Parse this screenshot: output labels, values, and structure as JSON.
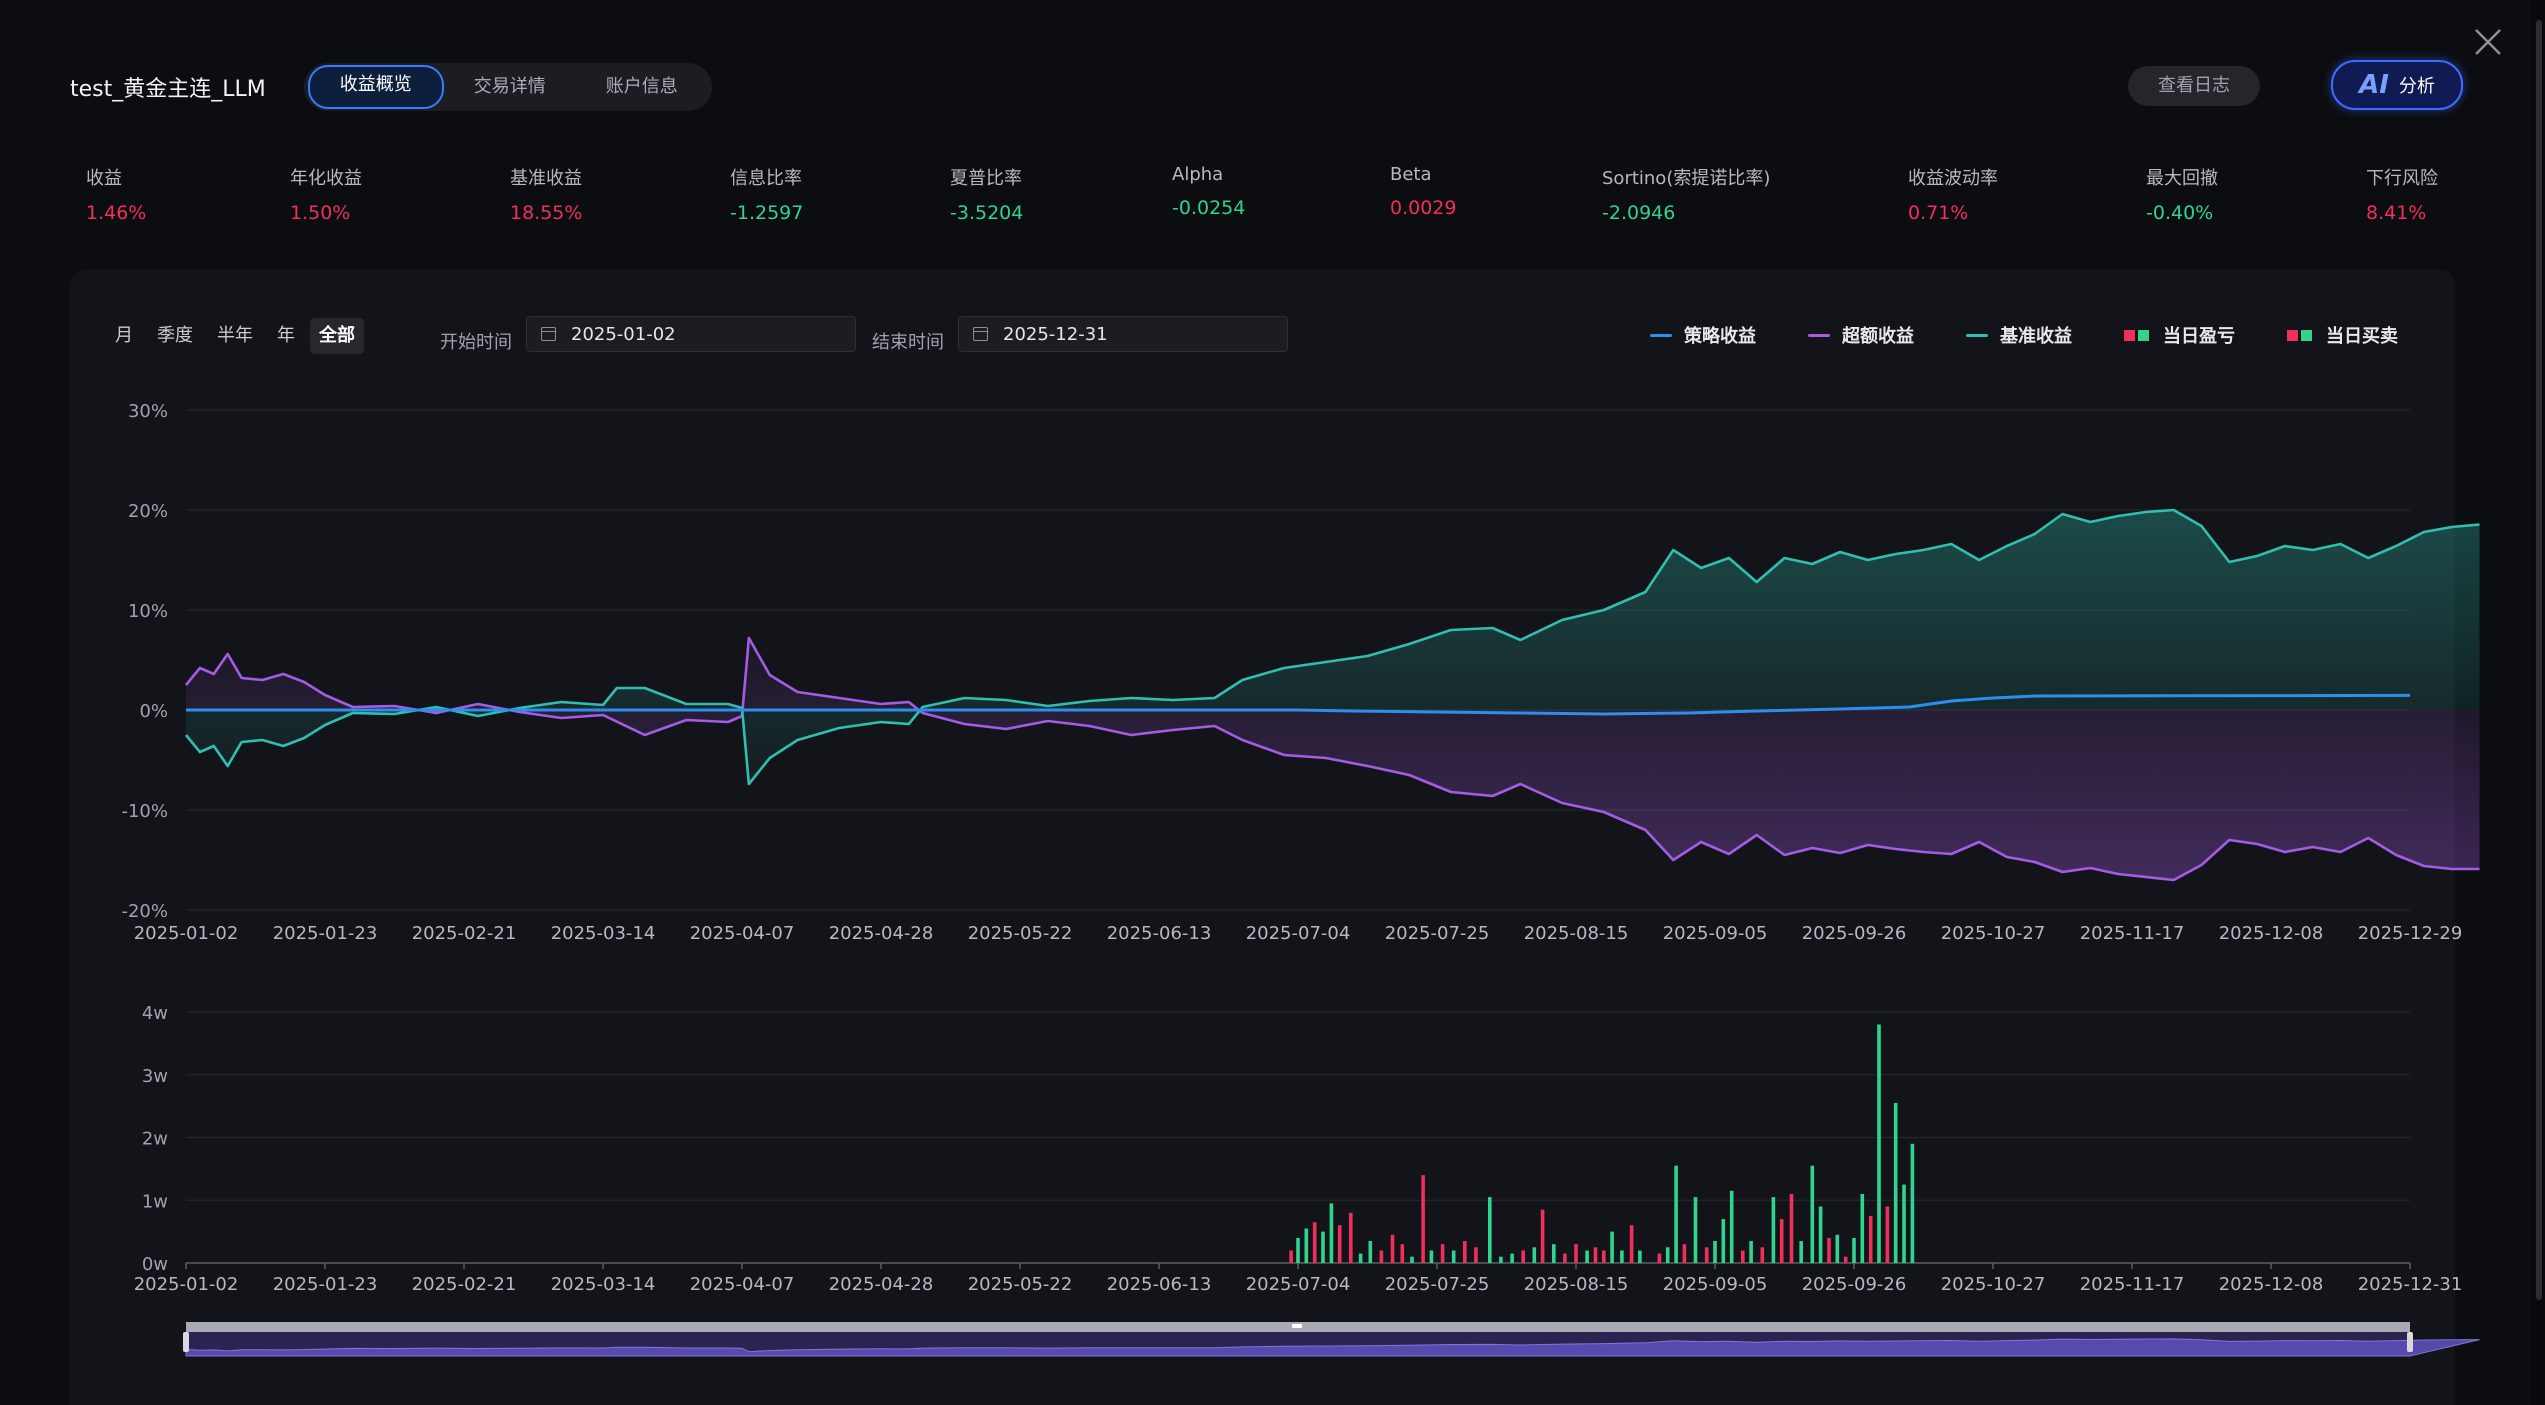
{
  "header": {
    "title": "test_黄金主连_LLM",
    "tabs": [
      {
        "label": "收益概览",
        "active": true
      },
      {
        "label": "交易详情",
        "active": false
      },
      {
        "label": "账户信息",
        "active": false
      }
    ],
    "log_button": "查看日志",
    "ai_icon": "AI",
    "ai_button": "分析"
  },
  "metrics": [
    {
      "label": "收益",
      "value": "1.46%",
      "tone": "red"
    },
    {
      "label": "年化收益",
      "value": "1.50%",
      "tone": "red"
    },
    {
      "label": "基准收益",
      "value": "18.55%",
      "tone": "red"
    },
    {
      "label": "信息比率",
      "value": "-1.2597",
      "tone": "green"
    },
    {
      "label": "夏普比率",
      "value": "-3.5204",
      "tone": "green"
    },
    {
      "label": "Alpha",
      "value": "-0.0254",
      "tone": "green"
    },
    {
      "label": "Beta",
      "value": "0.0029",
      "tone": "red"
    },
    {
      "label": "Sortino(索提诺比率)",
      "value": "-2.0946",
      "tone": "green"
    },
    {
      "label": "收益波动率",
      "value": "0.71%",
      "tone": "red"
    },
    {
      "label": "最大回撤",
      "value": "-0.40%",
      "tone": "green"
    },
    {
      "label": "下行风险",
      "value": "8.41%",
      "tone": "red"
    }
  ],
  "filters": {
    "periods": [
      {
        "label": "月",
        "active": false
      },
      {
        "label": "季度",
        "active": false
      },
      {
        "label": "半年",
        "active": false
      },
      {
        "label": "年",
        "active": false
      },
      {
        "label": "全部",
        "active": true
      }
    ],
    "start_label": "开始时间",
    "start_value": "2025-01-02",
    "end_label": "结束时间",
    "end_value": "2025-12-31"
  },
  "legend": {
    "strategy": "策略收益",
    "excess": "超额收益",
    "benchmark": "基准收益",
    "daily_pnl": "当日盈亏",
    "daily_trade": "当日买卖"
  },
  "colors": {
    "strategy": "#2b8ff0",
    "excess": "#a45ce6",
    "benchmark": "#2fbfb0",
    "up": "#f0305a",
    "down": "#2fd48d"
  },
  "chart_data": [
    {
      "type": "line",
      "ylim": [
        -20,
        30
      ],
      "y_ticks": [
        "30%",
        "20%",
        "10%",
        "0%",
        "-10%",
        "-20%"
      ],
      "x_ticks": [
        "2025-01-02",
        "2025-01-23",
        "2025-02-21",
        "2025-03-14",
        "2025-04-07",
        "2025-04-28",
        "2025-05-22",
        "2025-06-13",
        "2025-07-04",
        "2025-07-25",
        "2025-08-15",
        "2025-09-05",
        "2025-09-26",
        "2025-10-27",
        "2025-11-17",
        "2025-12-08",
        "2025-12-29"
      ],
      "series": [
        {
          "name": "策略收益",
          "key": "strategy",
          "fill": false,
          "points": [
            [
              0,
              0
            ],
            [
              8,
              0
            ],
            [
              8.4,
              -0.1
            ],
            [
              9,
              -0.2
            ],
            [
              9.6,
              -0.3
            ],
            [
              10.2,
              -0.4
            ],
            [
              10.8,
              -0.3
            ],
            [
              11.3,
              -0.1
            ],
            [
              11.9,
              0.1
            ],
            [
              12.4,
              0.3
            ],
            [
              12.7,
              0.9
            ],
            [
              13,
              1.2
            ],
            [
              13.3,
              1.4
            ],
            [
              16,
              1.46
            ]
          ]
        },
        {
          "name": "超额收益",
          "key": "excess",
          "fill": true,
          "points": [
            [
              0,
              2.5
            ],
            [
              0.1,
              4.2
            ],
            [
              0.2,
              3.6
            ],
            [
              0.3,
              5.6
            ],
            [
              0.4,
              3.2
            ],
            [
              0.55,
              3.0
            ],
            [
              0.7,
              3.6
            ],
            [
              0.85,
              2.8
            ],
            [
              1.0,
              1.5
            ],
            [
              1.2,
              0.3
            ],
            [
              1.5,
              0.4
            ],
            [
              1.8,
              -0.3
            ],
            [
              2.1,
              0.6
            ],
            [
              2.4,
              -0.2
            ],
            [
              2.7,
              -0.8
            ],
            [
              3.0,
              -0.5
            ],
            [
              3.3,
              -2.5
            ],
            [
              3.6,
              -1.0
            ],
            [
              3.9,
              -1.2
            ],
            [
              4.0,
              -0.6
            ],
            [
              4.05,
              7.2
            ],
            [
              4.2,
              3.5
            ],
            [
              4.4,
              1.8
            ],
            [
              4.7,
              1.2
            ],
            [
              5.0,
              0.6
            ],
            [
              5.2,
              0.8
            ],
            [
              5.3,
              -0.3
            ],
            [
              5.6,
              -1.4
            ],
            [
              5.9,
              -1.9
            ],
            [
              6.2,
              -1.1
            ],
            [
              6.5,
              -1.6
            ],
            [
              6.8,
              -2.5
            ],
            [
              7.1,
              -2.0
            ],
            [
              7.4,
              -1.6
            ],
            [
              7.6,
              -3.0
            ],
            [
              7.9,
              -4.5
            ],
            [
              8.2,
              -4.8
            ],
            [
              8.5,
              -5.6
            ],
            [
              8.8,
              -6.5
            ],
            [
              9.1,
              -8.2
            ],
            [
              9.4,
              -8.6
            ],
            [
              9.6,
              -7.4
            ],
            [
              9.9,
              -9.3
            ],
            [
              10.2,
              -10.2
            ],
            [
              10.5,
              -12.0
            ],
            [
              10.7,
              -15.0
            ],
            [
              10.9,
              -13.2
            ],
            [
              11.1,
              -14.4
            ],
            [
              11.3,
              -12.5
            ],
            [
              11.5,
              -14.5
            ],
            [
              11.7,
              -13.8
            ],
            [
              11.9,
              -14.3
            ],
            [
              12.1,
              -13.5
            ],
            [
              12.3,
              -13.9
            ],
            [
              12.5,
              -14.2
            ],
            [
              12.7,
              -14.4
            ],
            [
              12.9,
              -13.2
            ],
            [
              13.1,
              -14.7
            ],
            [
              13.3,
              -15.2
            ],
            [
              13.5,
              -16.2
            ],
            [
              13.7,
              -15.8
            ],
            [
              13.9,
              -16.4
            ],
            [
              14.1,
              -16.7
            ],
            [
              14.3,
              -17.0
            ],
            [
              14.5,
              -15.5
            ],
            [
              14.7,
              -13.0
            ],
            [
              14.9,
              -13.4
            ],
            [
              15.1,
              -14.2
            ],
            [
              15.3,
              -13.7
            ],
            [
              15.5,
              -14.2
            ],
            [
              15.7,
              -12.8
            ],
            [
              15.9,
              -14.5
            ],
            [
              16.1,
              -15.6
            ],
            [
              16.3,
              -15.9
            ],
            [
              16.5,
              -15.9
            ]
          ]
        },
        {
          "name": "基准收益",
          "key": "benchmark",
          "fill": true,
          "points": [
            [
              0,
              -2.5
            ],
            [
              0.1,
              -4.2
            ],
            [
              0.2,
              -3.6
            ],
            [
              0.3,
              -5.6
            ],
            [
              0.4,
              -3.2
            ],
            [
              0.55,
              -3.0
            ],
            [
              0.7,
              -3.6
            ],
            [
              0.85,
              -2.8
            ],
            [
              1.0,
              -1.5
            ],
            [
              1.2,
              -0.3
            ],
            [
              1.5,
              -0.4
            ],
            [
              1.8,
              0.3
            ],
            [
              2.1,
              -0.6
            ],
            [
              2.4,
              0.2
            ],
            [
              2.7,
              0.8
            ],
            [
              3.0,
              0.5
            ],
            [
              3.1,
              2.2
            ],
            [
              3.3,
              2.2
            ],
            [
              3.6,
              0.6
            ],
            [
              3.9,
              0.6
            ],
            [
              4.0,
              0.2
            ],
            [
              4.05,
              -7.4
            ],
            [
              4.2,
              -4.8
            ],
            [
              4.4,
              -3.0
            ],
            [
              4.7,
              -1.8
            ],
            [
              5.0,
              -1.2
            ],
            [
              5.2,
              -1.4
            ],
            [
              5.3,
              0.3
            ],
            [
              5.6,
              1.2
            ],
            [
              5.9,
              1.0
            ],
            [
              6.2,
              0.4
            ],
            [
              6.5,
              0.9
            ],
            [
              6.8,
              1.2
            ],
            [
              7.1,
              1.0
            ],
            [
              7.4,
              1.2
            ],
            [
              7.6,
              3.0
            ],
            [
              7.9,
              4.2
            ],
            [
              8.2,
              4.8
            ],
            [
              8.5,
              5.4
            ],
            [
              8.8,
              6.6
            ],
            [
              9.1,
              8.0
            ],
            [
              9.4,
              8.2
            ],
            [
              9.6,
              7.0
            ],
            [
              9.9,
              9.0
            ],
            [
              10.2,
              10.0
            ],
            [
              10.5,
              11.8
            ],
            [
              10.7,
              16.0
            ],
            [
              10.9,
              14.2
            ],
            [
              11.1,
              15.2
            ],
            [
              11.3,
              12.8
            ],
            [
              11.5,
              15.2
            ],
            [
              11.7,
              14.6
            ],
            [
              11.9,
              15.8
            ],
            [
              12.1,
              15.0
            ],
            [
              12.3,
              15.6
            ],
            [
              12.5,
              16.0
            ],
            [
              12.7,
              16.6
            ],
            [
              12.9,
              15.0
            ],
            [
              13.1,
              16.4
            ],
            [
              13.3,
              17.6
            ],
            [
              13.5,
              19.6
            ],
            [
              13.7,
              18.8
            ],
            [
              13.9,
              19.4
            ],
            [
              14.1,
              19.8
            ],
            [
              14.3,
              20.0
            ],
            [
              14.5,
              18.4
            ],
            [
              14.7,
              14.8
            ],
            [
              14.9,
              15.4
            ],
            [
              15.1,
              16.4
            ],
            [
              15.3,
              16.0
            ],
            [
              15.5,
              16.6
            ],
            [
              15.7,
              15.2
            ],
            [
              15.9,
              16.4
            ],
            [
              16.1,
              17.8
            ],
            [
              16.3,
              18.3
            ],
            [
              16.5,
              18.55
            ]
          ]
        }
      ]
    },
    {
      "type": "bar",
      "ylim": [
        0,
        4
      ],
      "unit": "w",
      "y_ticks": [
        "4w",
        "3w",
        "2w",
        "1w",
        "0w"
      ],
      "x_ticks": [
        "2025-01-02",
        "2025-01-23",
        "2025-02-21",
        "2025-03-14",
        "2025-04-07",
        "2025-04-28",
        "2025-05-22",
        "2025-06-13",
        "2025-07-04",
        "2025-07-25",
        "2025-08-15",
        "2025-09-05",
        "2025-09-26",
        "2025-10-27",
        "2025-11-17",
        "2025-12-08",
        "2025-12-31"
      ],
      "bars": [
        [
          7.95,
          0.2,
          "up"
        ],
        [
          8.0,
          0.4,
          "down"
        ],
        [
          8.06,
          0.55,
          "down"
        ],
        [
          8.12,
          0.65,
          "up"
        ],
        [
          8.18,
          0.5,
          "down"
        ],
        [
          8.24,
          0.95,
          "down"
        ],
        [
          8.3,
          0.6,
          "up"
        ],
        [
          8.38,
          0.8,
          "up"
        ],
        [
          8.45,
          0.15,
          "down"
        ],
        [
          8.52,
          0.35,
          "down"
        ],
        [
          8.6,
          0.2,
          "up"
        ],
        [
          8.68,
          0.45,
          "up"
        ],
        [
          8.75,
          0.3,
          "up"
        ],
        [
          8.82,
          0.1,
          "down"
        ],
        [
          8.9,
          1.4,
          "up"
        ],
        [
          8.96,
          0.2,
          "down"
        ],
        [
          9.04,
          0.3,
          "up"
        ],
        [
          9.12,
          0.2,
          "down"
        ],
        [
          9.2,
          0.35,
          "up"
        ],
        [
          9.28,
          0.25,
          "up"
        ],
        [
          9.38,
          1.05,
          "down"
        ],
        [
          9.46,
          0.1,
          "down"
        ],
        [
          9.54,
          0.15,
          "down"
        ],
        [
          9.62,
          0.2,
          "up"
        ],
        [
          9.7,
          0.25,
          "down"
        ],
        [
          9.76,
          0.85,
          "up"
        ],
        [
          9.84,
          0.3,
          "down"
        ],
        [
          9.92,
          0.15,
          "up"
        ],
        [
          10.0,
          0.3,
          "up"
        ],
        [
          10.08,
          0.2,
          "down"
        ],
        [
          10.14,
          0.25,
          "up"
        ],
        [
          10.2,
          0.2,
          "up"
        ],
        [
          10.26,
          0.5,
          "down"
        ],
        [
          10.33,
          0.2,
          "down"
        ],
        [
          10.4,
          0.6,
          "up"
        ],
        [
          10.46,
          0.2,
          "down"
        ],
        [
          10.6,
          0.15,
          "up"
        ],
        [
          10.66,
          0.25,
          "down"
        ],
        [
          10.72,
          1.55,
          "down"
        ],
        [
          10.78,
          0.3,
          "up"
        ],
        [
          10.86,
          1.05,
          "down"
        ],
        [
          10.94,
          0.25,
          "up"
        ],
        [
          11.0,
          0.35,
          "down"
        ],
        [
          11.06,
          0.7,
          "down"
        ],
        [
          11.12,
          1.15,
          "down"
        ],
        [
          11.2,
          0.2,
          "up"
        ],
        [
          11.26,
          0.35,
          "down"
        ],
        [
          11.34,
          0.25,
          "up"
        ],
        [
          11.42,
          1.05,
          "down"
        ],
        [
          11.48,
          0.7,
          "up"
        ],
        [
          11.55,
          1.1,
          "up"
        ],
        [
          11.62,
          0.35,
          "down"
        ],
        [
          11.7,
          1.55,
          "down"
        ],
        [
          11.76,
          0.9,
          "down"
        ],
        [
          11.82,
          0.4,
          "up"
        ],
        [
          11.88,
          0.45,
          "down"
        ],
        [
          11.94,
          0.1,
          "up"
        ],
        [
          12.0,
          0.4,
          "down"
        ],
        [
          12.06,
          1.1,
          "down"
        ],
        [
          12.12,
          0.75,
          "up"
        ],
        [
          12.18,
          3.8,
          "down"
        ],
        [
          12.24,
          0.9,
          "up"
        ],
        [
          12.3,
          2.55,
          "down"
        ],
        [
          12.36,
          1.25,
          "down"
        ],
        [
          12.42,
          1.9,
          "down"
        ]
      ]
    }
  ]
}
